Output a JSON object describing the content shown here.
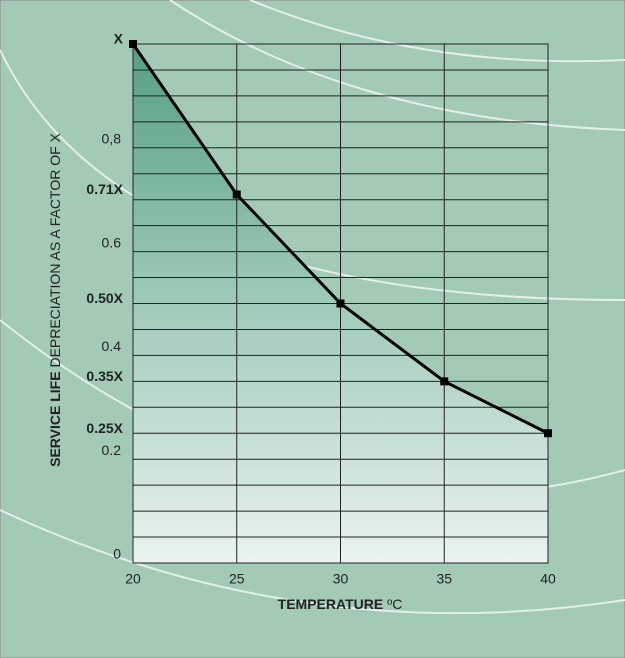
{
  "chart_data": {
    "type": "line",
    "ylabel": [
      "SERVICE LIFE",
      "DEPRECIATION AS A FACTOR OF X"
    ],
    "xlabel": [
      "TEMPERATURE",
      "ºC"
    ],
    "x": [
      20,
      25,
      30,
      35,
      40
    ],
    "series": [
      {
        "color": "#000000",
        "values": [
          1,
          0.71,
          0.5,
          0.35,
          0.25
        ],
        "value_labels": [
          "X",
          "0.71X",
          "0.50X",
          "0.35X",
          "0.25X"
        ]
      }
    ],
    "xlim": [
      20,
      40
    ],
    "xticks": [
      20,
      25,
      30,
      35,
      40
    ],
    "ylim": [
      0,
      1
    ],
    "yticks": [
      0,
      0.2,
      0.4,
      0.6,
      {
        "value": 0.8,
        "label": "0,8"
      }
    ],
    "minor_yticks": [
      0.05,
      0.1,
      0.15,
      0.25,
      0.3,
      0.35,
      0.45,
      0.5,
      0.55,
      0.65,
      0.7,
      0.75,
      0.85,
      0.9,
      0.95
    ],
    "grid": true
  }
}
